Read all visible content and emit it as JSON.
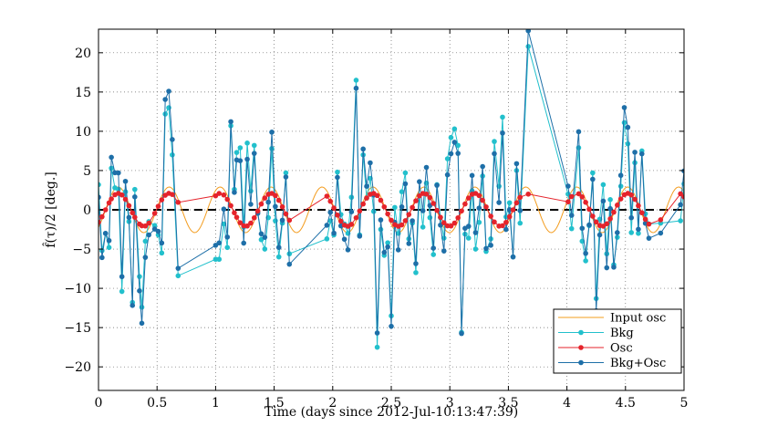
{
  "chart_data": {
    "type": "line",
    "title": "",
    "xlabel": "Time (days since 2012-Jul-10:13:47:39)",
    "ylabel": "f̂(τ)/2 [deg.]",
    "xlim": [
      0,
      5
    ],
    "ylim": [
      -23,
      23
    ],
    "xticks": [
      0,
      0.5,
      1,
      1.5,
      2,
      2.5,
      3,
      3.5,
      4,
      4.5,
      5
    ],
    "xtick_labels": [
      "0",
      "0.5",
      "1",
      "1.5",
      "2",
      "2.5",
      "3",
      "3.5",
      "4",
      "4.5",
      "5"
    ],
    "yticks": [
      -20,
      -15,
      -10,
      -5,
      0,
      5,
      10,
      15,
      20
    ],
    "ytick_labels": [
      "−20",
      "−15",
      "−10",
      "−5",
      "0",
      "5",
      "10",
      "15",
      "20"
    ],
    "grid": true,
    "legend_position": "bottom-right",
    "zero_line": {
      "y": 0,
      "style": "dashed",
      "color": "#000000"
    },
    "colors": {
      "input_osc": "#f39c1e",
      "bkg": "#22c0cc",
      "osc": "#e5232b",
      "bkg_osc": "#1e6fa8"
    },
    "series": [
      {
        "name": "Input osc",
        "key": "input_osc",
        "kind": "sine",
        "amplitude": 2.9,
        "period_days": 0.435,
        "phase_days": 0.06
      },
      {
        "name": "Bkg",
        "key": "bkg",
        "kind": "markers",
        "points": [
          [
            0,
            3.2
          ],
          [
            0.03,
            -5.2
          ],
          [
            0.06,
            -3
          ],
          [
            0.09,
            -4.8
          ],
          [
            0.11,
            5.3
          ],
          [
            0.14,
            2.8
          ],
          [
            0.17,
            2.6
          ],
          [
            0.2,
            -10.4
          ],
          [
            0.23,
            2.3
          ],
          [
            0.26,
            -1.5
          ],
          [
            0.29,
            -11.8
          ],
          [
            0.31,
            2.6
          ],
          [
            0.35,
            -8.5
          ],
          [
            0.37,
            -12.4
          ],
          [
            0.4,
            -4
          ],
          [
            0.43,
            -1.5
          ],
          [
            0.48,
            -2
          ],
          [
            0.51,
            -3.2
          ],
          [
            0.54,
            -5.5
          ],
          [
            0.57,
            12.2
          ],
          [
            0.6,
            13
          ],
          [
            0.63,
            7
          ],
          [
            0.68,
            -8.4
          ],
          [
            1,
            -6.3
          ],
          [
            1.03,
            -6.3
          ],
          [
            1.07,
            -1.8
          ],
          [
            1.1,
            -4.8
          ],
          [
            1.13,
            10.7
          ],
          [
            1.16,
            2.6
          ],
          [
            1.18,
            7.3
          ],
          [
            1.21,
            7.9
          ],
          [
            1.24,
            -2.2
          ],
          [
            1.27,
            8.5
          ],
          [
            1.3,
            2.4
          ],
          [
            1.33,
            8.2
          ],
          [
            1.36,
            -0.3
          ],
          [
            1.39,
            -3.8
          ],
          [
            1.42,
            -5
          ],
          [
            1.45,
            -1
          ],
          [
            1.48,
            7.8
          ],
          [
            1.51,
            -1.4
          ],
          [
            1.54,
            -6
          ],
          [
            1.57,
            -1.7
          ],
          [
            1.6,
            4.7
          ],
          [
            1.63,
            -5.6
          ],
          [
            1.95,
            -3.7
          ],
          [
            1.98,
            -1.4
          ],
          [
            2.01,
            -3.2
          ],
          [
            2.04,
            4.8
          ],
          [
            2.07,
            -0.6
          ],
          [
            2.1,
            -1.8
          ],
          [
            2.13,
            -3
          ],
          [
            2.16,
            1.6
          ],
          [
            2.2,
            16.5
          ],
          [
            2.23,
            -3.2
          ],
          [
            2.26,
            7
          ],
          [
            2.29,
            1.5
          ],
          [
            2.32,
            4
          ],
          [
            2.35,
            -0.2
          ],
          [
            2.38,
            -17.5
          ],
          [
            2.41,
            -2.5
          ],
          [
            2.44,
            -5.8
          ],
          [
            2.47,
            -4.2
          ],
          [
            2.5,
            -13.5
          ],
          [
            2.53,
            0.3
          ],
          [
            2.56,
            -3
          ],
          [
            2.59,
            2.3
          ],
          [
            2.62,
            4.7
          ],
          [
            2.65,
            -3.7
          ],
          [
            2.68,
            -1.7
          ],
          [
            2.71,
            -8
          ],
          [
            2.74,
            1.8
          ],
          [
            2.77,
            -2.2
          ],
          [
            2.8,
            3.4
          ],
          [
            2.83,
            -1
          ],
          [
            2.86,
            -5.7
          ],
          [
            2.89,
            3.2
          ],
          [
            2.92,
            -1
          ],
          [
            2.95,
            -3.6
          ],
          [
            2.98,
            6.5
          ],
          [
            3.01,
            9.2
          ],
          [
            3.04,
            10.3
          ],
          [
            3.07,
            8.2
          ],
          [
            3.1,
            -15.6
          ],
          [
            3.13,
            -3.1
          ],
          [
            3.16,
            -3.6
          ],
          [
            3.19,
            2.4
          ],
          [
            3.22,
            -5
          ],
          [
            3.25,
            -1.6
          ],
          [
            3.28,
            4.3
          ],
          [
            3.31,
            -5.3
          ],
          [
            3.35,
            -3.7
          ],
          [
            3.38,
            8.7
          ],
          [
            3.42,
            3
          ],
          [
            3.45,
            11.8
          ],
          [
            3.48,
            -0.9
          ],
          [
            3.51,
            0.9
          ],
          [
            3.54,
            -6
          ],
          [
            3.57,
            5
          ],
          [
            3.6,
            -1.7
          ],
          [
            3.67,
            20.8
          ],
          [
            4.01,
            2
          ],
          [
            4.04,
            -2.4
          ],
          [
            4.1,
            7.9
          ],
          [
            4.13,
            -4
          ],
          [
            4.16,
            -6.5
          ],
          [
            4.19,
            -2
          ],
          [
            4.22,
            4.7
          ],
          [
            4.25,
            -11.3
          ],
          [
            4.28,
            -1.2
          ],
          [
            4.31,
            3.2
          ],
          [
            4.34,
            -5.6
          ],
          [
            4.37,
            1.3
          ],
          [
            4.4,
            -7
          ],
          [
            4.43,
            -3.5
          ],
          [
            4.46,
            3
          ],
          [
            4.49,
            11.1
          ],
          [
            4.52,
            8.4
          ],
          [
            4.55,
            -2.9
          ],
          [
            4.58,
            6
          ],
          [
            4.61,
            -3
          ],
          [
            4.64,
            7.5
          ],
          [
            4.67,
            -0.5
          ],
          [
            4.7,
            -1.8
          ],
          [
            4.8,
            -1.7
          ],
          [
            4.97,
            -1.4
          ],
          [
            5,
            3.3
          ]
        ]
      },
      {
        "name": "Osc",
        "key": "osc",
        "kind": "osc_samples",
        "amplitude": 2.1,
        "period_days": 0.435,
        "phase_days": 0.06,
        "x": [
          0,
          0.03,
          0.06,
          0.09,
          0.11,
          0.14,
          0.17,
          0.2,
          0.23,
          0.26,
          0.29,
          0.31,
          0.35,
          0.37,
          0.4,
          0.43,
          0.48,
          0.51,
          0.54,
          0.57,
          0.6,
          0.63,
          0.68,
          1,
          1.03,
          1.07,
          1.1,
          1.13,
          1.16,
          1.18,
          1.21,
          1.24,
          1.27,
          1.3,
          1.33,
          1.36,
          1.39,
          1.42,
          1.45,
          1.48,
          1.51,
          1.54,
          1.57,
          1.6,
          1.63,
          1.95,
          1.98,
          2.01,
          2.04,
          2.07,
          2.1,
          2.13,
          2.16,
          2.2,
          2.23,
          2.26,
          2.29,
          2.32,
          2.35,
          2.38,
          2.41,
          2.44,
          2.47,
          2.5,
          2.53,
          2.56,
          2.59,
          2.62,
          2.65,
          2.68,
          2.71,
          2.74,
          2.77,
          2.8,
          2.83,
          2.86,
          2.89,
          2.92,
          2.95,
          2.98,
          3.01,
          3.04,
          3.07,
          3.1,
          3.13,
          3.16,
          3.19,
          3.22,
          3.25,
          3.28,
          3.31,
          3.35,
          3.38,
          3.42,
          3.45,
          3.48,
          3.51,
          3.54,
          3.57,
          3.6,
          3.67,
          4.01,
          4.04,
          4.1,
          4.13,
          4.16,
          4.19,
          4.22,
          4.25,
          4.28,
          4.31,
          4.34,
          4.37,
          4.4,
          4.43,
          4.46,
          4.49,
          4.52,
          4.55,
          4.58,
          4.61,
          4.64,
          4.67,
          4.7,
          4.8,
          4.97,
          5
        ]
      },
      {
        "name": "Bkg+Osc",
        "key": "bkg_osc",
        "kind": "sum_of_bkg_and_osc"
      }
    ]
  }
}
